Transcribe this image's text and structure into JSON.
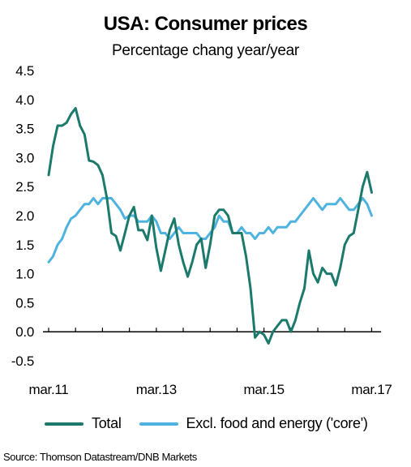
{
  "chart_data": {
    "type": "line",
    "title": "USA: Consumer prices",
    "subtitle": "Percentage chang year/year",
    "xlabel": "",
    "ylabel": "",
    "x_start": "2011-03",
    "x_end": "2017-04",
    "x_ticks": [
      {
        "date": "2011-03",
        "label": "mar.11"
      },
      {
        "date": "2013-03",
        "label": "mar.13"
      },
      {
        "date": "2015-03",
        "label": "mar.15"
      },
      {
        "date": "2017-03",
        "label": "mar.17"
      }
    ],
    "ylim": [
      -0.5,
      4.5
    ],
    "y_ticks": [
      "4.5",
      "4.0",
      "3.5",
      "3.0",
      "2.5",
      "2.0",
      "1.5",
      "1.0",
      "0.5",
      "0.0",
      "-0.5"
    ],
    "grid": false,
    "legend": "bottom",
    "series": [
      {
        "name": "Total",
        "color": "#1b7a6b",
        "points": [
          [
            "2011-03",
            2.7
          ],
          [
            "2011-04",
            3.2
          ],
          [
            "2011-05",
            3.55
          ],
          [
            "2011-06",
            3.55
          ],
          [
            "2011-07",
            3.6
          ],
          [
            "2011-08",
            3.75
          ],
          [
            "2011-09",
            3.85
          ],
          [
            "2011-10",
            3.55
          ],
          [
            "2011-11",
            3.4
          ],
          [
            "2011-12",
            2.95
          ],
          [
            "2012-01",
            2.93
          ],
          [
            "2012-02",
            2.87
          ],
          [
            "2012-03",
            2.7
          ],
          [
            "2012-04",
            2.3
          ],
          [
            "2012-05",
            1.7
          ],
          [
            "2012-06",
            1.65
          ],
          [
            "2012-07",
            1.4
          ],
          [
            "2012-08",
            1.7
          ],
          [
            "2012-09",
            2.0
          ],
          [
            "2012-10",
            2.15
          ],
          [
            "2012-11",
            1.75
          ],
          [
            "2012-12",
            1.75
          ],
          [
            "2013-01",
            1.58
          ],
          [
            "2013-02",
            2.0
          ],
          [
            "2013-03",
            1.45
          ],
          [
            "2013-04",
            1.05
          ],
          [
            "2013-05",
            1.4
          ],
          [
            "2013-06",
            1.75
          ],
          [
            "2013-07",
            1.95
          ],
          [
            "2013-08",
            1.5
          ],
          [
            "2013-09",
            1.2
          ],
          [
            "2013-10",
            0.95
          ],
          [
            "2013-11",
            1.2
          ],
          [
            "2013-12",
            1.5
          ],
          [
            "2014-01",
            1.6
          ],
          [
            "2014-02",
            1.1
          ],
          [
            "2014-03",
            1.5
          ],
          [
            "2014-04",
            2.0
          ],
          [
            "2014-05",
            2.1
          ],
          [
            "2014-06",
            2.1
          ],
          [
            "2014-07",
            2.0
          ],
          [
            "2014-08",
            1.7
          ],
          [
            "2014-09",
            1.7
          ],
          [
            "2014-10",
            1.7
          ],
          [
            "2014-11",
            1.3
          ],
          [
            "2014-12",
            0.75
          ],
          [
            "2015-01",
            -0.1
          ],
          [
            "2015-02",
            0.0
          ],
          [
            "2015-03",
            -0.05
          ],
          [
            "2015-04",
            -0.2
          ],
          [
            "2015-05",
            0.0
          ],
          [
            "2015-06",
            0.1
          ],
          [
            "2015-07",
            0.2
          ],
          [
            "2015-08",
            0.2
          ],
          [
            "2015-09",
            0.0
          ],
          [
            "2015-10",
            0.2
          ],
          [
            "2015-11",
            0.5
          ],
          [
            "2015-12",
            0.75
          ],
          [
            "2016-01",
            1.4
          ],
          [
            "2016-02",
            1.0
          ],
          [
            "2016-03",
            0.85
          ],
          [
            "2016-04",
            1.1
          ],
          [
            "2016-05",
            1.0
          ],
          [
            "2016-06",
            1.0
          ],
          [
            "2016-07",
            0.8
          ],
          [
            "2016-08",
            1.1
          ],
          [
            "2016-09",
            1.5
          ],
          [
            "2016-10",
            1.65
          ],
          [
            "2016-11",
            1.7
          ],
          [
            "2016-12",
            2.1
          ],
          [
            "2017-01",
            2.5
          ],
          [
            "2017-02",
            2.75
          ],
          [
            "2017-03",
            2.4
          ]
        ]
      },
      {
        "name": "Excl. food and energy ('core')",
        "color": "#4fb3e0",
        "points": [
          [
            "2011-03",
            1.2
          ],
          [
            "2011-04",
            1.3
          ],
          [
            "2011-05",
            1.5
          ],
          [
            "2011-06",
            1.6
          ],
          [
            "2011-07",
            1.8
          ],
          [
            "2011-08",
            1.95
          ],
          [
            "2011-09",
            2.0
          ],
          [
            "2011-10",
            2.1
          ],
          [
            "2011-11",
            2.2
          ],
          [
            "2011-12",
            2.2
          ],
          [
            "2012-01",
            2.3
          ],
          [
            "2012-02",
            2.2
          ],
          [
            "2012-03",
            2.3
          ],
          [
            "2012-04",
            2.3
          ],
          [
            "2012-05",
            2.3
          ],
          [
            "2012-06",
            2.2
          ],
          [
            "2012-07",
            2.1
          ],
          [
            "2012-08",
            1.95
          ],
          [
            "2012-09",
            2.0
          ],
          [
            "2012-10",
            2.0
          ],
          [
            "2012-11",
            1.9
          ],
          [
            "2012-12",
            1.9
          ],
          [
            "2013-01",
            1.9
          ],
          [
            "2013-02",
            2.0
          ],
          [
            "2013-03",
            1.9
          ],
          [
            "2013-04",
            1.7
          ],
          [
            "2013-05",
            1.7
          ],
          [
            "2013-06",
            1.6
          ],
          [
            "2013-07",
            1.7
          ],
          [
            "2013-08",
            1.8
          ],
          [
            "2013-09",
            1.7
          ],
          [
            "2013-10",
            1.7
          ],
          [
            "2013-11",
            1.7
          ],
          [
            "2013-12",
            1.7
          ],
          [
            "2014-01",
            1.6
          ],
          [
            "2014-02",
            1.6
          ],
          [
            "2014-03",
            1.7
          ],
          [
            "2014-04",
            1.8
          ],
          [
            "2014-05",
            2.0
          ],
          [
            "2014-06",
            1.9
          ],
          [
            "2014-07",
            1.9
          ],
          [
            "2014-08",
            1.7
          ],
          [
            "2014-09",
            1.7
          ],
          [
            "2014-10",
            1.8
          ],
          [
            "2014-11",
            1.7
          ],
          [
            "2014-12",
            1.7
          ],
          [
            "2015-01",
            1.6
          ],
          [
            "2015-02",
            1.7
          ],
          [
            "2015-03",
            1.7
          ],
          [
            "2015-04",
            1.8
          ],
          [
            "2015-05",
            1.7
          ],
          [
            "2015-06",
            1.8
          ],
          [
            "2015-07",
            1.8
          ],
          [
            "2015-08",
            1.8
          ],
          [
            "2015-09",
            1.9
          ],
          [
            "2015-10",
            1.9
          ],
          [
            "2015-11",
            2.0
          ],
          [
            "2015-12",
            2.1
          ],
          [
            "2016-01",
            2.2
          ],
          [
            "2016-02",
            2.3
          ],
          [
            "2016-03",
            2.2
          ],
          [
            "2016-04",
            2.1
          ],
          [
            "2016-05",
            2.2
          ],
          [
            "2016-06",
            2.2
          ],
          [
            "2016-07",
            2.2
          ],
          [
            "2016-08",
            2.3
          ],
          [
            "2016-09",
            2.2
          ],
          [
            "2016-10",
            2.1
          ],
          [
            "2016-11",
            2.1
          ],
          [
            "2016-12",
            2.2
          ],
          [
            "2017-01",
            2.3
          ],
          [
            "2017-02",
            2.2
          ],
          [
            "2017-03",
            2.0
          ]
        ]
      }
    ]
  },
  "source": "Source: Thomson Datastream/DNB Markets"
}
